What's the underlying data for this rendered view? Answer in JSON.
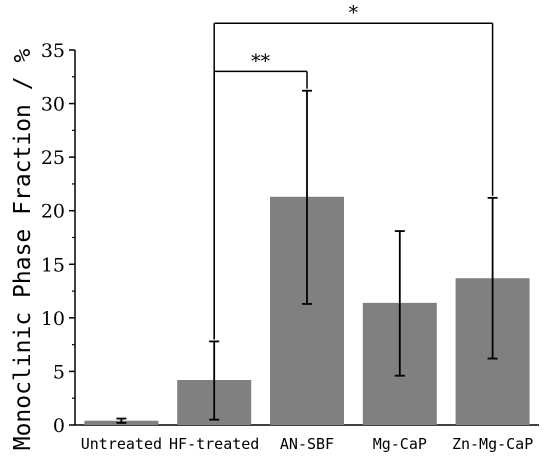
{
  "chart_data": {
    "type": "bar",
    "ylabel": "Monoclinic Phase Fraction / %",
    "xlabel": "",
    "ylim": [
      0,
      35
    ],
    "yticks": [
      0,
      5,
      10,
      15,
      20,
      25,
      30,
      35
    ],
    "ytick_labels": [
      "0",
      "5",
      "10",
      "15",
      "20",
      "25",
      "30",
      "35"
    ],
    "categories": [
      "Untreated",
      "HF-treated",
      "AN-SBF",
      "Mg-CaP",
      "Zn-Mg-CaP"
    ],
    "values": [
      0.4,
      4.2,
      21.3,
      11.4,
      13.7
    ],
    "error_low": [
      0.2,
      0.5,
      11.3,
      4.6,
      6.2
    ],
    "error_high": [
      0.6,
      7.8,
      31.2,
      18.1,
      21.2
    ],
    "bar_color": "#808080",
    "significance": [
      {
        "from": "HF-treated",
        "to": "AN-SBF",
        "label": "**",
        "height": 33.0
      },
      {
        "from": "HF-treated",
        "to": "Zn-Mg-CaP",
        "label": "*",
        "height": 37.5
      }
    ],
    "grid": false,
    "legend": "none"
  }
}
